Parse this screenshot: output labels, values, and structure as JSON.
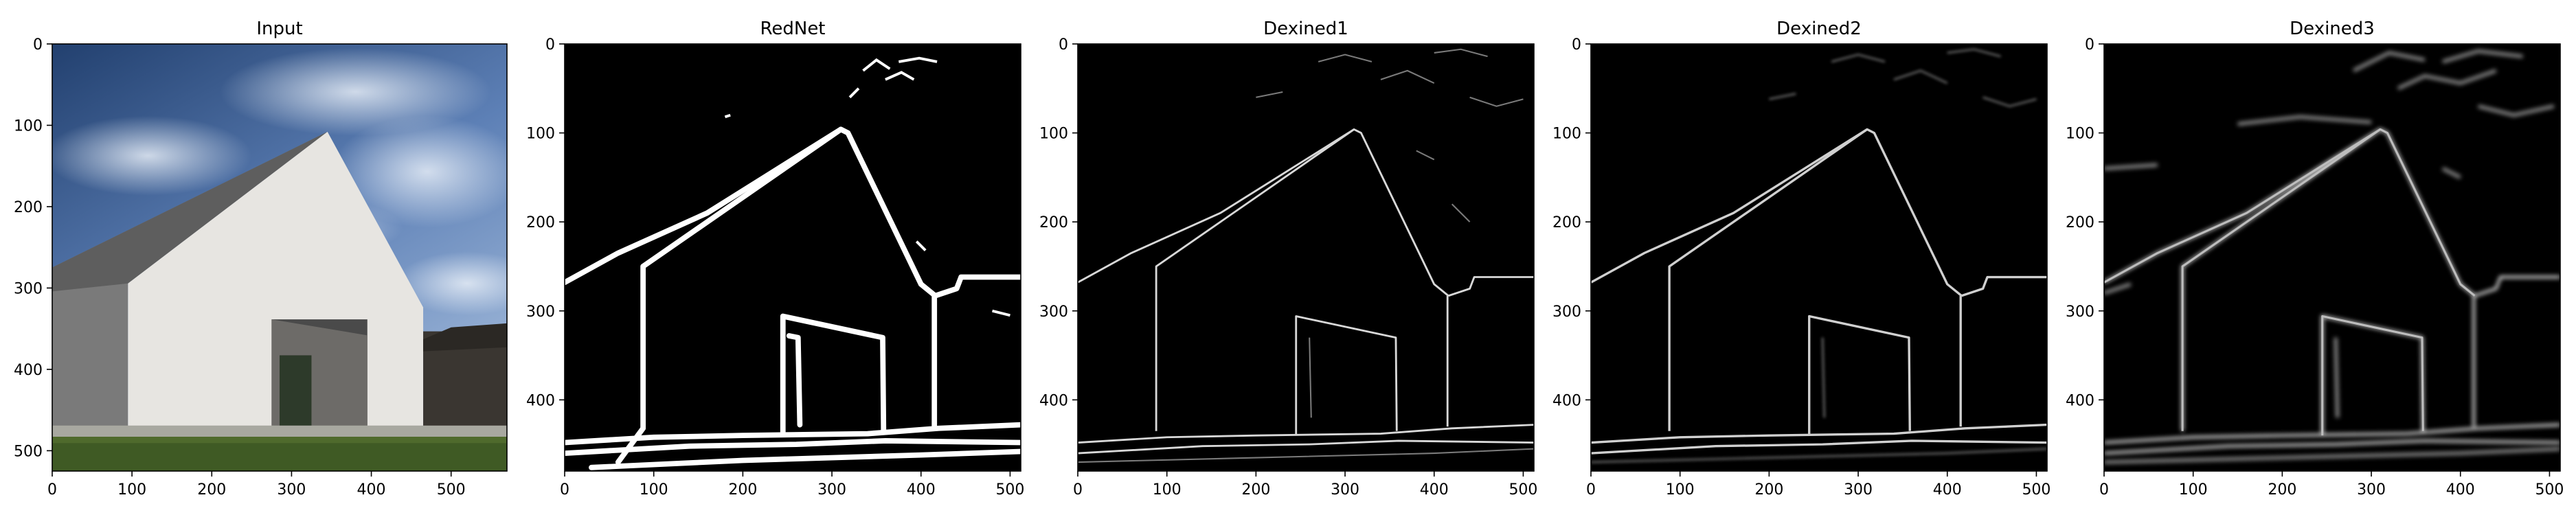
{
  "chart_data": [
    {
      "type": "image",
      "title": "Input",
      "xlim": [
        0,
        570
      ],
      "ylim": [
        525,
        0
      ],
      "xticks": [
        "0",
        "100",
        "200",
        "300",
        "400",
        "500"
      ],
      "yticks": [
        "0",
        "100",
        "200",
        "300",
        "400",
        "500"
      ],
      "image": "photograph of a white gabled house under a blue cloudy sky with green grass"
    },
    {
      "type": "image",
      "title": "RedNet",
      "xlim": [
        0,
        512
      ],
      "ylim": [
        480,
        0
      ],
      "xticks": [
        "0",
        "100",
        "200",
        "300",
        "400",
        "500"
      ],
      "yticks": [
        "0",
        "100",
        "200",
        "300",
        "400"
      ],
      "image": "binary edge map, thick white edges on black"
    },
    {
      "type": "image",
      "title": "Dexined1",
      "xlim": [
        0,
        512
      ],
      "ylim": [
        480,
        0
      ],
      "xticks": [
        "0",
        "100",
        "200",
        "300",
        "400",
        "500"
      ],
      "yticks": [
        "0",
        "100",
        "200",
        "300",
        "400"
      ],
      "image": "thin grey edge map on black"
    },
    {
      "type": "image",
      "title": "Dexined2",
      "xlim": [
        0,
        512
      ],
      "ylim": [
        480,
        0
      ],
      "xticks": [
        "0",
        "100",
        "200",
        "300",
        "400",
        "500"
      ],
      "yticks": [
        "0",
        "100",
        "200",
        "300",
        "400"
      ],
      "image": "thin grey edge map on black"
    },
    {
      "type": "image",
      "title": "Dexined3",
      "xlim": [
        0,
        512
      ],
      "ylim": [
        480,
        0
      ],
      "xticks": [
        "0",
        "100",
        "200",
        "300",
        "400",
        "500"
      ],
      "yticks": [
        "0",
        "100",
        "200",
        "300",
        "400"
      ],
      "image": "soft grey edge map on black"
    }
  ],
  "colors": {
    "sky_top": "#2c4d80",
    "sky_bottom": "#8aa9d3",
    "wall": "#e6e4e0",
    "wall_shadow": "#a9a7a3",
    "roof_side": "#6f6f6f",
    "grass": "#4f6a2c",
    "edge_background": "#000000",
    "edge_strong": "#ffffff",
    "edge_soft": "#cfcfcf"
  }
}
